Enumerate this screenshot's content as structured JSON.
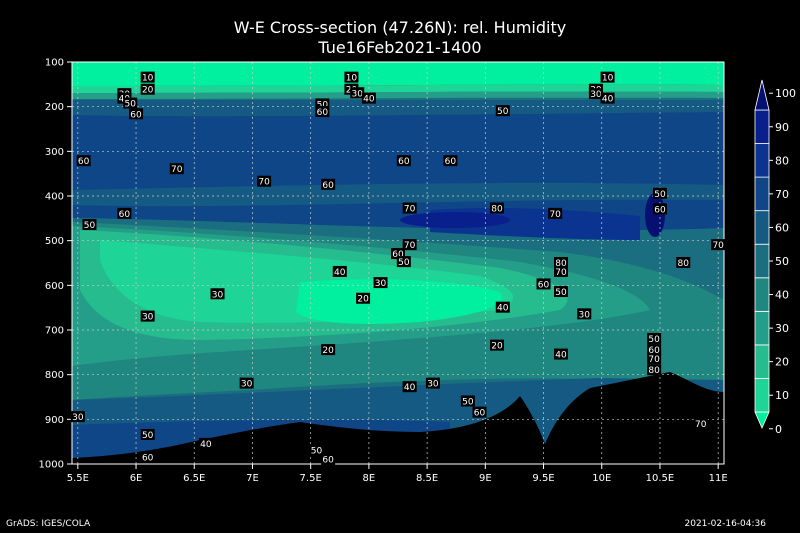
{
  "title": "W-E Cross-section (47.26N): rel. Humidity",
  "subtitle": "Tue16Feb2021-1400",
  "footer_left": "GrADS: IGES/COLA",
  "footer_right": "2021-02-16-04:36",
  "chart_data": {
    "type": "heatmap",
    "x_ticks": [
      "5.5E",
      "6E",
      "6.5E",
      "7E",
      "7.5E",
      "8E",
      "8.5E",
      "9E",
      "9.5E",
      "10E",
      "10.5E",
      "11E"
    ],
    "x_values": [
      5.5,
      6,
      6.5,
      7,
      7.5,
      8,
      8.5,
      9,
      9.5,
      10,
      10.5,
      11
    ],
    "y_ticks": [
      "100",
      "200",
      "300",
      "400",
      "500",
      "600",
      "700",
      "800",
      "900",
      "1000"
    ],
    "y_values": [
      100,
      200,
      300,
      400,
      500,
      600,
      700,
      800,
      900,
      1000
    ],
    "xlim": [
      5.45,
      11.05
    ],
    "ylim": [
      100,
      1000
    ],
    "grid": true,
    "colorbar_ticks": [
      "0",
      "10",
      "20",
      "30",
      "40",
      "50",
      "60",
      "70",
      "80",
      "90",
      "100"
    ],
    "colorbar_values": [
      0,
      10,
      20,
      30,
      40,
      50,
      60,
      70,
      80,
      90,
      100
    ],
    "colorbar_colors": [
      "#00f0a0",
      "#1ed496",
      "#26bc8e",
      "#249e88",
      "#208680",
      "#1a6e80",
      "#145a82",
      "#0e4688",
      "#0a3490",
      "#081f8c",
      "#061070"
    ],
    "contour_labels": [
      {
        "text": "10",
        "x": 6.1,
        "y": 135
      },
      {
        "text": "20",
        "x": 6.1,
        "y": 162
      },
      {
        "text": "30",
        "x": 5.9,
        "y": 172
      },
      {
        "text": "40",
        "x": 5.9,
        "y": 182
      },
      {
        "text": "50",
        "x": 5.95,
        "y": 193
      },
      {
        "text": "60",
        "x": 6.0,
        "y": 217
      },
      {
        "text": "10",
        "x": 7.85,
        "y": 135
      },
      {
        "text": "20",
        "x": 7.85,
        "y": 162
      },
      {
        "text": "30",
        "x": 7.9,
        "y": 170
      },
      {
        "text": "40",
        "x": 8.0,
        "y": 182
      },
      {
        "text": "50",
        "x": 7.6,
        "y": 195
      },
      {
        "text": "60",
        "x": 7.6,
        "y": 212
      },
      {
        "text": "10",
        "x": 10.05,
        "y": 135
      },
      {
        "text": "20",
        "x": 9.95,
        "y": 162
      },
      {
        "text": "30",
        "x": 9.95,
        "y": 172
      },
      {
        "text": "40",
        "x": 10.05,
        "y": 182
      },
      {
        "text": "50",
        "x": 9.15,
        "y": 210
      },
      {
        "text": "60",
        "x": 5.55,
        "y": 322
      },
      {
        "text": "70",
        "x": 6.35,
        "y": 340
      },
      {
        "text": "70",
        "x": 7.1,
        "y": 368
      },
      {
        "text": "60",
        "x": 7.65,
        "y": 375
      },
      {
        "text": "60",
        "x": 8.3,
        "y": 322
      },
      {
        "text": "60",
        "x": 8.7,
        "y": 322
      },
      {
        "text": "70",
        "x": 8.35,
        "y": 428
      },
      {
        "text": "80",
        "x": 9.1,
        "y": 428
      },
      {
        "text": "50",
        "x": 5.6,
        "y": 465
      },
      {
        "text": "60",
        "x": 5.9,
        "y": 440
      },
      {
        "text": "70",
        "x": 9.6,
        "y": 440
      },
      {
        "text": "50",
        "x": 10.5,
        "y": 395
      },
      {
        "text": "60",
        "x": 10.5,
        "y": 430
      },
      {
        "text": "70",
        "x": 11.0,
        "y": 510
      },
      {
        "text": "80",
        "x": 10.7,
        "y": 550
      },
      {
        "text": "80",
        "x": 9.65,
        "y": 550
      },
      {
        "text": "70",
        "x": 9.65,
        "y": 570
      },
      {
        "text": "60",
        "x": 9.5,
        "y": 598
      },
      {
        "text": "50",
        "x": 9.65,
        "y": 615
      },
      {
        "text": "70",
        "x": 8.35,
        "y": 510
      },
      {
        "text": "60",
        "x": 8.25,
        "y": 530
      },
      {
        "text": "50",
        "x": 8.3,
        "y": 548
      },
      {
        "text": "40",
        "x": 7.75,
        "y": 570
      },
      {
        "text": "30",
        "x": 8.1,
        "y": 595
      },
      {
        "text": "20",
        "x": 7.95,
        "y": 630
      },
      {
        "text": "40",
        "x": 9.15,
        "y": 650
      },
      {
        "text": "30",
        "x": 9.85,
        "y": 665
      },
      {
        "text": "30",
        "x": 6.7,
        "y": 620
      },
      {
        "text": "30",
        "x": 6.1,
        "y": 670
      },
      {
        "text": "20",
        "x": 7.65,
        "y": 745
      },
      {
        "text": "20",
        "x": 9.1,
        "y": 735
      },
      {
        "text": "40",
        "x": 9.65,
        "y": 755
      },
      {
        "text": "50",
        "x": 10.45,
        "y": 720
      },
      {
        "text": "60",
        "x": 10.45,
        "y": 745
      },
      {
        "text": "70",
        "x": 10.45,
        "y": 765
      },
      {
        "text": "80",
        "x": 10.45,
        "y": 790
      },
      {
        "text": "30",
        "x": 6.95,
        "y": 820
      },
      {
        "text": "40",
        "x": 8.35,
        "y": 828
      },
      {
        "text": "30",
        "x": 8.55,
        "y": 820
      },
      {
        "text": "50",
        "x": 8.85,
        "y": 860
      },
      {
        "text": "60",
        "x": 8.95,
        "y": 885
      },
      {
        "text": "30",
        "x": 5.5,
        "y": 895
      },
      {
        "text": "50",
        "x": 6.1,
        "y": 935
      },
      {
        "text": "40",
        "x": 6.6,
        "y": 955
      },
      {
        "text": "50",
        "x": 7.55,
        "y": 970
      },
      {
        "text": "60",
        "x": 6.1,
        "y": 985
      },
      {
        "text": "60",
        "x": 7.65,
        "y": 990
      },
      {
        "text": "70",
        "x": 10.85,
        "y": 910
      }
    ]
  }
}
